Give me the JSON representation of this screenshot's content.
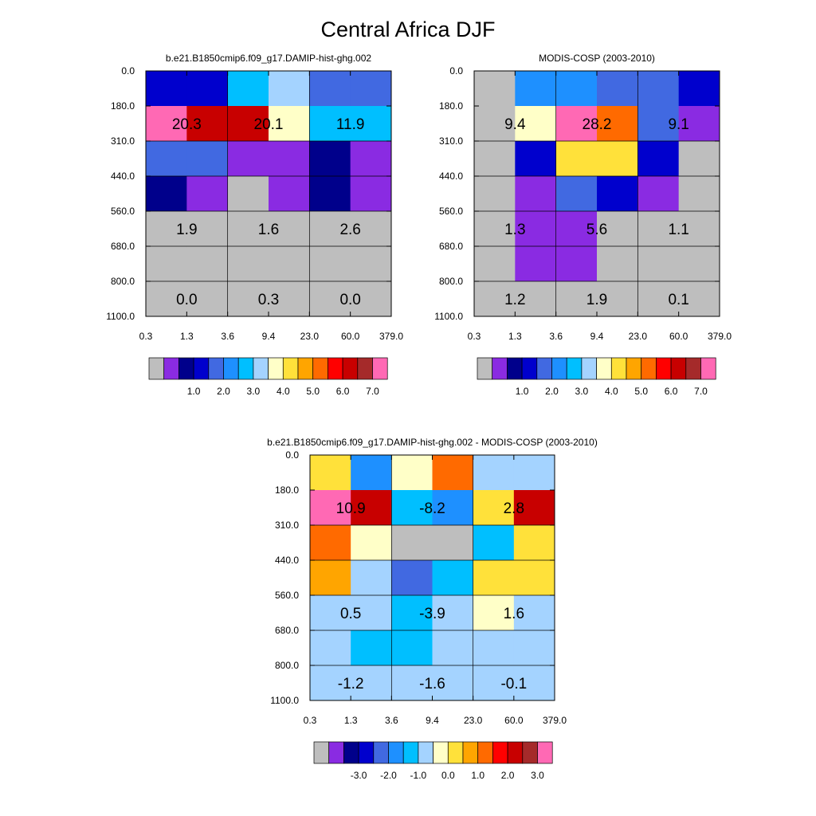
{
  "figure": {
    "title": "Central Africa DJF"
  },
  "colors": {
    "palette": [
      "#bebebe",
      "#8a2be2",
      "#00008b",
      "#0000cd",
      "#4169e1",
      "#1e90ff",
      "#00bfff",
      "#a4d3ff",
      "#ffffc8",
      "#ffe13a",
      "#ffa500",
      "#ff6a00",
      "#ff0000",
      "#c80000",
      "#a52a2a",
      "#ff69b4"
    ],
    "grid": "#000000",
    "text": "#000000"
  },
  "chart_data": [
    {
      "type": "heatmap",
      "title": "b.e21.B1850cmip6.f09_g17.DAMIP-hist-ghg.002",
      "x_ticks": [
        "0.3",
        "1.3",
        "3.6",
        "9.4",
        "23.0",
        "60.0",
        "379.0"
      ],
      "y_ticks": [
        "0.0",
        "180.0",
        "310.0",
        "440.0",
        "560.0",
        "680.0",
        "800.0",
        "1100.0"
      ],
      "cells": [
        [
          3,
          3,
          6,
          7,
          4,
          4
        ],
        [
          15,
          13,
          13,
          8,
          6,
          6
        ],
        [
          4,
          4,
          1,
          1,
          2,
          1
        ],
        [
          2,
          1,
          0,
          1,
          2,
          1
        ],
        [
          0,
          0,
          0,
          0,
          0,
          0
        ],
        [
          0,
          0,
          0,
          0,
          0,
          0
        ],
        [
          0,
          0,
          0,
          0,
          0,
          0
        ]
      ],
      "labels": [
        {
          "row": 1,
          "col": 0.5,
          "text": "20.3"
        },
        {
          "row": 1,
          "col": 2.5,
          "text": "20.1"
        },
        {
          "row": 1,
          "col": 4.5,
          "text": "11.9"
        },
        {
          "row": 4,
          "col": 0.5,
          "text": "1.9"
        },
        {
          "row": 4,
          "col": 2.5,
          "text": "1.6"
        },
        {
          "row": 4,
          "col": 4.5,
          "text": "2.6"
        },
        {
          "row": 6,
          "col": 0.5,
          "text": "0.0"
        },
        {
          "row": 6,
          "col": 2.5,
          "text": "0.3"
        },
        {
          "row": 6,
          "col": 4.5,
          "text": "0.0"
        }
      ],
      "colorbar_labels": [
        "1.0",
        "2.0",
        "3.0",
        "4.0",
        "5.0",
        "6.0",
        "7.0"
      ]
    },
    {
      "type": "heatmap",
      "title": "MODIS-COSP (2003-2010)",
      "x_ticks": [
        "0.3",
        "1.3",
        "3.6",
        "9.4",
        "23.0",
        "60.0",
        "379.0"
      ],
      "y_ticks": [
        "0.0",
        "180.0",
        "310.0",
        "440.0",
        "560.0",
        "680.0",
        "800.0",
        "1100.0"
      ],
      "cells": [
        [
          0,
          5,
          5,
          4,
          4,
          3
        ],
        [
          0,
          8,
          15,
          11,
          4,
          1
        ],
        [
          0,
          3,
          9,
          9,
          3,
          0
        ],
        [
          0,
          1,
          4,
          3,
          1,
          0
        ],
        [
          0,
          1,
          1,
          0,
          0,
          0
        ],
        [
          0,
          1,
          1,
          0,
          0,
          0
        ],
        [
          0,
          0,
          0,
          0,
          0,
          0
        ]
      ],
      "labels": [
        {
          "row": 1,
          "col": 0.5,
          "text": "9.4"
        },
        {
          "row": 1,
          "col": 2.5,
          "text": "28.2"
        },
        {
          "row": 1,
          "col": 4.5,
          "text": "9.1"
        },
        {
          "row": 4,
          "col": 0.5,
          "text": "1.3"
        },
        {
          "row": 4,
          "col": 2.5,
          "text": "5.6"
        },
        {
          "row": 4,
          "col": 4.5,
          "text": "1.1"
        },
        {
          "row": 6,
          "col": 0.5,
          "text": "1.2"
        },
        {
          "row": 6,
          "col": 2.5,
          "text": "1.9"
        },
        {
          "row": 6,
          "col": 4.5,
          "text": "0.1"
        }
      ],
      "colorbar_labels": [
        "1.0",
        "2.0",
        "3.0",
        "4.0",
        "5.0",
        "6.0",
        "7.0"
      ]
    },
    {
      "type": "heatmap",
      "title": "b.e21.B1850cmip6.f09_g17.DAMIP-hist-ghg.002 - MODIS-COSP (2003-2010)",
      "x_ticks": [
        "0.3",
        "1.3",
        "3.6",
        "9.4",
        "23.0",
        "60.0",
        "379.0"
      ],
      "y_ticks": [
        "0.0",
        "180.0",
        "310.0",
        "440.0",
        "560.0",
        "680.0",
        "800.0",
        "1100.0"
      ],
      "cells": [
        [
          9,
          5,
          8,
          11,
          7,
          7
        ],
        [
          15,
          13,
          6,
          5,
          9,
          13
        ],
        [
          11,
          8,
          0,
          0,
          6,
          9
        ],
        [
          10,
          7,
          4,
          6,
          9,
          9
        ],
        [
          7,
          7,
          6,
          7,
          8,
          7
        ],
        [
          7,
          6,
          6,
          7,
          7,
          7
        ],
        [
          7,
          7,
          7,
          7,
          7,
          7
        ]
      ],
      "labels": [
        {
          "row": 1,
          "col": 0.5,
          "text": "10.9"
        },
        {
          "row": 1,
          "col": 2.5,
          "text": "-8.2"
        },
        {
          "row": 1,
          "col": 4.5,
          "text": "2.8"
        },
        {
          "row": 4,
          "col": 0.5,
          "text": "0.5"
        },
        {
          "row": 4,
          "col": 2.5,
          "text": "-3.9"
        },
        {
          "row": 4,
          "col": 4.5,
          "text": "1.6"
        },
        {
          "row": 6,
          "col": 0.5,
          "text": "-1.2"
        },
        {
          "row": 6,
          "col": 2.5,
          "text": "-1.6"
        },
        {
          "row": 6,
          "col": 4.5,
          "text": "-0.1"
        }
      ],
      "colorbar_labels": [
        "-3.0",
        "-2.0",
        "-1.0",
        "0.0",
        "1.0",
        "2.0",
        "3.0"
      ]
    }
  ]
}
